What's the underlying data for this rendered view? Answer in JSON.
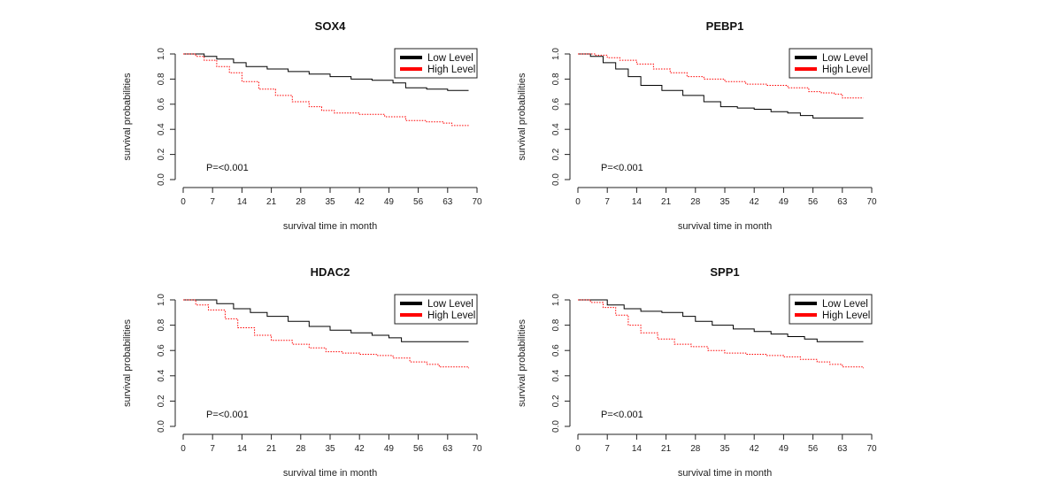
{
  "chart_data": [
    {
      "type": "line",
      "title": "SOX4",
      "xlabel": "survival time in month",
      "ylabel": "survival probabilities",
      "xlim": [
        0,
        70
      ],
      "ylim": [
        0,
        1
      ],
      "xticks": [
        "0",
        "7",
        "14",
        "21",
        "28",
        "35",
        "42",
        "49",
        "56",
        "63",
        "70"
      ],
      "yticks": [
        "0.0",
        "0.2",
        "0.4",
        "0.6",
        "0.8",
        "1.0"
      ],
      "legend": {
        "position": "top-right",
        "entries": [
          "Low Level",
          "High Level"
        ]
      },
      "annotation": "P=<0.001",
      "series": [
        {
          "name": "Low Level",
          "color": "#000000",
          "style": "solid",
          "points": [
            [
              0,
              1.0
            ],
            [
              3,
              1.0
            ],
            [
              5,
              0.98
            ],
            [
              8,
              0.96
            ],
            [
              12,
              0.93
            ],
            [
              15,
              0.9
            ],
            [
              20,
              0.88
            ],
            [
              25,
              0.86
            ],
            [
              30,
              0.84
            ],
            [
              35,
              0.82
            ],
            [
              40,
              0.8
            ],
            [
              45,
              0.79
            ],
            [
              50,
              0.77
            ],
            [
              53,
              0.73
            ],
            [
              58,
              0.72
            ],
            [
              63,
              0.71
            ],
            [
              68,
              0.71
            ]
          ]
        },
        {
          "name": "High Level",
          "color": "#ff0000",
          "style": "dotted",
          "points": [
            [
              0,
              1.0
            ],
            [
              3,
              0.98
            ],
            [
              5,
              0.95
            ],
            [
              8,
              0.9
            ],
            [
              11,
              0.85
            ],
            [
              14,
              0.78
            ],
            [
              18,
              0.72
            ],
            [
              22,
              0.67
            ],
            [
              26,
              0.62
            ],
            [
              30,
              0.58
            ],
            [
              33,
              0.55
            ],
            [
              36,
              0.53
            ],
            [
              42,
              0.52
            ],
            [
              48,
              0.5
            ],
            [
              53,
              0.47
            ],
            [
              58,
              0.46
            ],
            [
              62,
              0.45
            ],
            [
              64,
              0.43
            ],
            [
              68,
              0.43
            ]
          ]
        }
      ]
    },
    {
      "type": "line",
      "title": "PEBP1",
      "xlabel": "survival time in month",
      "ylabel": "survival probabilities",
      "xlim": [
        0,
        70
      ],
      "ylim": [
        0,
        1
      ],
      "xticks": [
        "0",
        "7",
        "14",
        "21",
        "28",
        "35",
        "42",
        "49",
        "56",
        "63",
        "70"
      ],
      "yticks": [
        "0.0",
        "0.2",
        "0.4",
        "0.6",
        "0.8",
        "1.0"
      ],
      "legend": {
        "position": "top-right",
        "entries": [
          "Low Level",
          "High Level"
        ]
      },
      "annotation": "P=<0.001",
      "series": [
        {
          "name": "Low Level",
          "color": "#000000",
          "style": "solid",
          "points": [
            [
              0,
              1.0
            ],
            [
              3,
              0.98
            ],
            [
              6,
              0.93
            ],
            [
              9,
              0.88
            ],
            [
              12,
              0.82
            ],
            [
              15,
              0.75
            ],
            [
              20,
              0.71
            ],
            [
              25,
              0.67
            ],
            [
              30,
              0.62
            ],
            [
              34,
              0.58
            ],
            [
              38,
              0.57
            ],
            [
              42,
              0.56
            ],
            [
              46,
              0.54
            ],
            [
              50,
              0.53
            ],
            [
              53,
              0.51
            ],
            [
              56,
              0.49
            ],
            [
              60,
              0.49
            ],
            [
              68,
              0.49
            ]
          ]
        },
        {
          "name": "High Level",
          "color": "#ff0000",
          "style": "dotted",
          "points": [
            [
              0,
              1.0
            ],
            [
              4,
              0.99
            ],
            [
              7,
              0.97
            ],
            [
              10,
              0.95
            ],
            [
              14,
              0.92
            ],
            [
              18,
              0.88
            ],
            [
              22,
              0.85
            ],
            [
              26,
              0.82
            ],
            [
              30,
              0.8
            ],
            [
              35,
              0.78
            ],
            [
              40,
              0.76
            ],
            [
              45,
              0.75
            ],
            [
              50,
              0.73
            ],
            [
              55,
              0.7
            ],
            [
              58,
              0.69
            ],
            [
              61,
              0.68
            ],
            [
              63,
              0.65
            ],
            [
              68,
              0.65
            ]
          ]
        }
      ]
    },
    {
      "type": "line",
      "title": "HDAC2",
      "xlabel": "survival time in month",
      "ylabel": "survival probabilities",
      "xlim": [
        0,
        70
      ],
      "ylim": [
        0,
        1
      ],
      "xticks": [
        "0",
        "7",
        "14",
        "21",
        "28",
        "35",
        "42",
        "49",
        "56",
        "63",
        "70"
      ],
      "yticks": [
        "0.0",
        "0.2",
        "0.4",
        "0.6",
        "0.8",
        "1.0"
      ],
      "legend": {
        "position": "top-right",
        "entries": [
          "Low Level",
          "High Level"
        ]
      },
      "annotation": "P=<0.001",
      "series": [
        {
          "name": "Low Level",
          "color": "#000000",
          "style": "solid",
          "points": [
            [
              0,
              1.0
            ],
            [
              5,
              1.0
            ],
            [
              8,
              0.97
            ],
            [
              12,
              0.93
            ],
            [
              16,
              0.9
            ],
            [
              20,
              0.87
            ],
            [
              25,
              0.83
            ],
            [
              30,
              0.79
            ],
            [
              35,
              0.76
            ],
            [
              40,
              0.74
            ],
            [
              45,
              0.72
            ],
            [
              49,
              0.7
            ],
            [
              52,
              0.67
            ],
            [
              56,
              0.67
            ],
            [
              63,
              0.67
            ],
            [
              68,
              0.67
            ]
          ]
        },
        {
          "name": "High Level",
          "color": "#ff0000",
          "style": "dotted",
          "points": [
            [
              0,
              1.0
            ],
            [
              3,
              0.96
            ],
            [
              6,
              0.92
            ],
            [
              10,
              0.85
            ],
            [
              13,
              0.78
            ],
            [
              17,
              0.72
            ],
            [
              21,
              0.68
            ],
            [
              26,
              0.65
            ],
            [
              30,
              0.62
            ],
            [
              34,
              0.59
            ],
            [
              38,
              0.58
            ],
            [
              42,
              0.57
            ],
            [
              46,
              0.56
            ],
            [
              50,
              0.54
            ],
            [
              54,
              0.51
            ],
            [
              58,
              0.49
            ],
            [
              61,
              0.47
            ],
            [
              68,
              0.46
            ]
          ]
        }
      ]
    },
    {
      "type": "line",
      "title": "SPP1",
      "xlabel": "survival time in month",
      "ylabel": "survival probabilities",
      "xlim": [
        0,
        70
      ],
      "ylim": [
        0,
        1
      ],
      "xticks": [
        "0",
        "7",
        "14",
        "21",
        "28",
        "35",
        "42",
        "49",
        "56",
        "63",
        "70"
      ],
      "yticks": [
        "0.0",
        "0.2",
        "0.4",
        "0.6",
        "0.8",
        "1.0"
      ],
      "legend": {
        "position": "top-right",
        "entries": [
          "Low Level",
          "High Level"
        ]
      },
      "annotation": "P=<0.001",
      "series": [
        {
          "name": "Low Level",
          "color": "#000000",
          "style": "solid",
          "points": [
            [
              0,
              1.0
            ],
            [
              4,
              1.0
            ],
            [
              7,
              0.96
            ],
            [
              11,
              0.93
            ],
            [
              15,
              0.91
            ],
            [
              20,
              0.9
            ],
            [
              25,
              0.87
            ],
            [
              28,
              0.83
            ],
            [
              32,
              0.8
            ],
            [
              37,
              0.77
            ],
            [
              42,
              0.75
            ],
            [
              46,
              0.73
            ],
            [
              50,
              0.71
            ],
            [
              54,
              0.69
            ],
            [
              57,
              0.67
            ],
            [
              63,
              0.67
            ],
            [
              68,
              0.67
            ]
          ]
        },
        {
          "name": "High Level",
          "color": "#ff0000",
          "style": "dotted",
          "points": [
            [
              0,
              1.0
            ],
            [
              3,
              0.98
            ],
            [
              6,
              0.94
            ],
            [
              9,
              0.88
            ],
            [
              12,
              0.8
            ],
            [
              15,
              0.74
            ],
            [
              19,
              0.69
            ],
            [
              23,
              0.65
            ],
            [
              27,
              0.63
            ],
            [
              31,
              0.6
            ],
            [
              35,
              0.58
            ],
            [
              40,
              0.57
            ],
            [
              45,
              0.56
            ],
            [
              49,
              0.55
            ],
            [
              53,
              0.53
            ],
            [
              57,
              0.51
            ],
            [
              60,
              0.49
            ],
            [
              63,
              0.47
            ],
            [
              68,
              0.46
            ]
          ]
        }
      ]
    }
  ]
}
